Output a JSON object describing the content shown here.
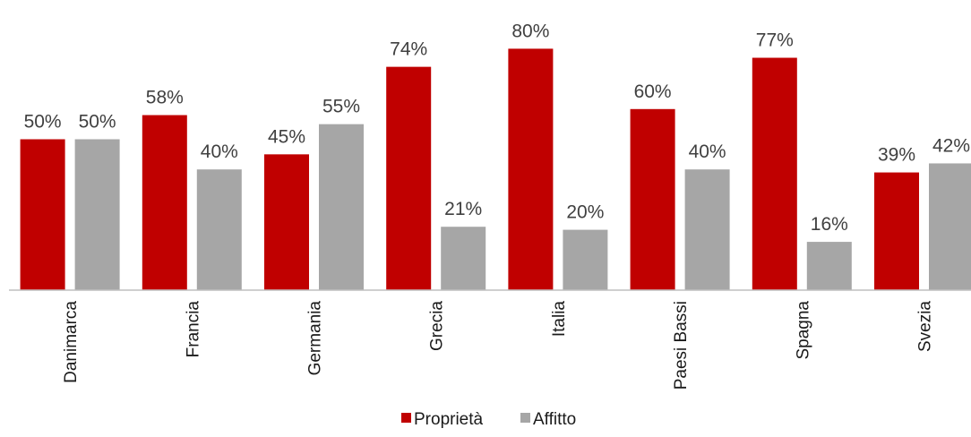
{
  "chart_data": {
    "type": "bar",
    "categories": [
      "Danimarca",
      "Francia",
      "Germania",
      "Grecia",
      "Italia",
      "Paesi Bassi",
      "Spagna",
      "Svezia"
    ],
    "series": [
      {
        "name": "Proprietà",
        "color": "#c00000",
        "values": [
          50,
          58,
          45,
          74,
          80,
          60,
          77,
          39
        ],
        "labels": [
          "50%",
          "58%",
          "45%",
          "74%",
          "80%",
          "60%",
          "77%",
          "39%"
        ]
      },
      {
        "name": "Affitto",
        "color": "#a6a6a6",
        "values": [
          50,
          40,
          55,
          21,
          20,
          40,
          16,
          42
        ],
        "labels": [
          "50%",
          "40%",
          "55%",
          "21%",
          "20%",
          "40%",
          "16%",
          "42%"
        ]
      }
    ],
    "unit": "%",
    "ylim": [
      0,
      85
    ],
    "grid": false,
    "legend_position": "bottom",
    "category_label_orientation": "vertical",
    "axis_color": "#bfbfbf"
  }
}
